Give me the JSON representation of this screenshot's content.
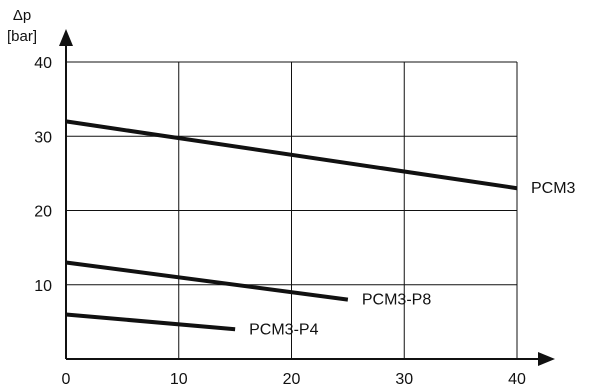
{
  "chart_data": {
    "type": "line",
    "ylabel_top": "Δp",
    "ylabel_unit": "[bar]",
    "xlim": [
      0,
      40
    ],
    "ylim": [
      0,
      40
    ],
    "grid": true,
    "legend": "none",
    "x_ticks": [
      0,
      10,
      20,
      30,
      40
    ],
    "y_ticks": [
      10,
      20,
      30,
      40
    ],
    "x_tick_labels": [
      "0",
      "10",
      "20",
      "30",
      "40"
    ],
    "y_tick_labels": [
      "10",
      "20",
      "30",
      "40"
    ],
    "series": [
      {
        "name": "PCM3",
        "points": [
          [
            0,
            32
          ],
          [
            40,
            23
          ]
        ]
      },
      {
        "name": "PCM3-P8",
        "points": [
          [
            0,
            13
          ],
          [
            25,
            8
          ]
        ]
      },
      {
        "name": "PCM3-P4",
        "points": [
          [
            0,
            6
          ],
          [
            15,
            4
          ]
        ]
      }
    ]
  }
}
